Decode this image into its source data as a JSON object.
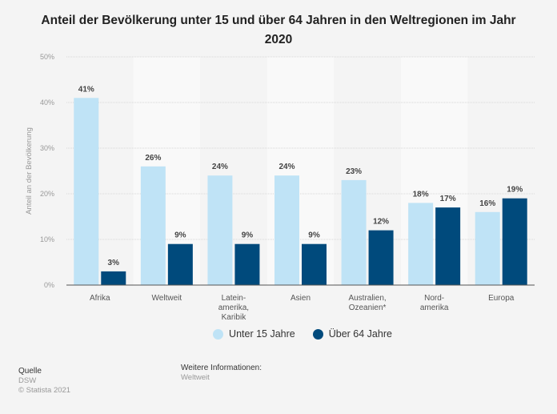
{
  "chart_data": {
    "type": "bar",
    "title": "Anteil der Bevölkerung unter 15 und über 64 Jahren in den Weltregionen im Jahr 2020",
    "xlabel": "",
    "ylabel": "Anteil an der Bevölkerung",
    "ylim": [
      0,
      50
    ],
    "yticks": [
      0,
      10,
      20,
      30,
      40,
      50
    ],
    "ytick_labels": [
      "0%",
      "10%",
      "20%",
      "30%",
      "40%",
      "50%"
    ],
    "grid": true,
    "legend_position": "bottom",
    "categories": [
      [
        "Afrika"
      ],
      [
        "Weltweit"
      ],
      [
        "Latein-",
        "amerika,",
        "Karibik"
      ],
      [
        "Asien"
      ],
      [
        "Australien,",
        "Ozeanien*"
      ],
      [
        "Nord-",
        "amerika"
      ],
      [
        "Europa"
      ]
    ],
    "series": [
      {
        "name": "Unter 15 Jahre",
        "color": "#bfe3f6",
        "values": [
          41,
          26,
          24,
          24,
          23,
          18,
          16
        ],
        "labels": [
          "41%",
          "26%",
          "24%",
          "24%",
          "23%",
          "18%",
          "16%"
        ]
      },
      {
        "name": "Über 64 Jahre",
        "color": "#004a7c",
        "values": [
          3,
          9,
          9,
          9,
          12,
          17,
          19
        ],
        "labels": [
          "3%",
          "9%",
          "9%",
          "9%",
          "12%",
          "17%",
          "19%"
        ]
      }
    ]
  },
  "footer": {
    "source_heading": "Quelle",
    "source_name": "DSW",
    "copyright": "© Statista 2021",
    "info_heading": "Weitere Informationen:",
    "info_value": "Weltweit"
  }
}
